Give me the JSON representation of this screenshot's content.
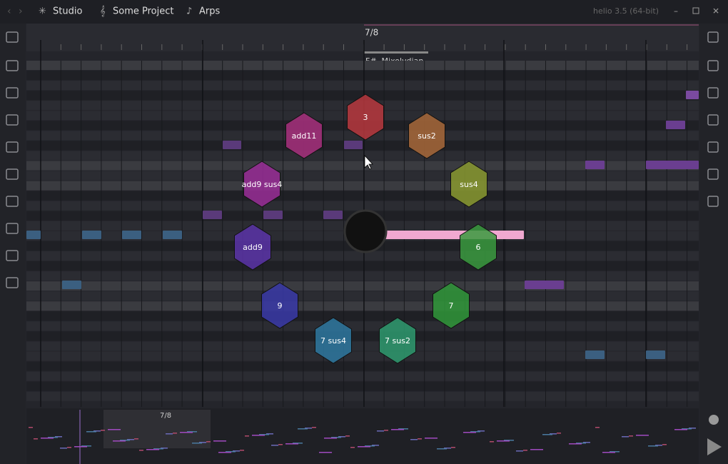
{
  "nav": {
    "items": [
      "Studio",
      "Some Project",
      "Arps"
    ]
  },
  "window": {
    "title": "helio 3.5 (64-bit)"
  },
  "ruler": {
    "marker": "7/8"
  },
  "key_signature": "F#, Mixolydian",
  "chords": [
    "3",
    "add11",
    "sus2",
    "add9 sus4",
    "sus4",
    "add9",
    "6",
    "9",
    "7",
    "7 sus4",
    "7 sus2"
  ],
  "minimap": {
    "marker": "7/8"
  }
}
